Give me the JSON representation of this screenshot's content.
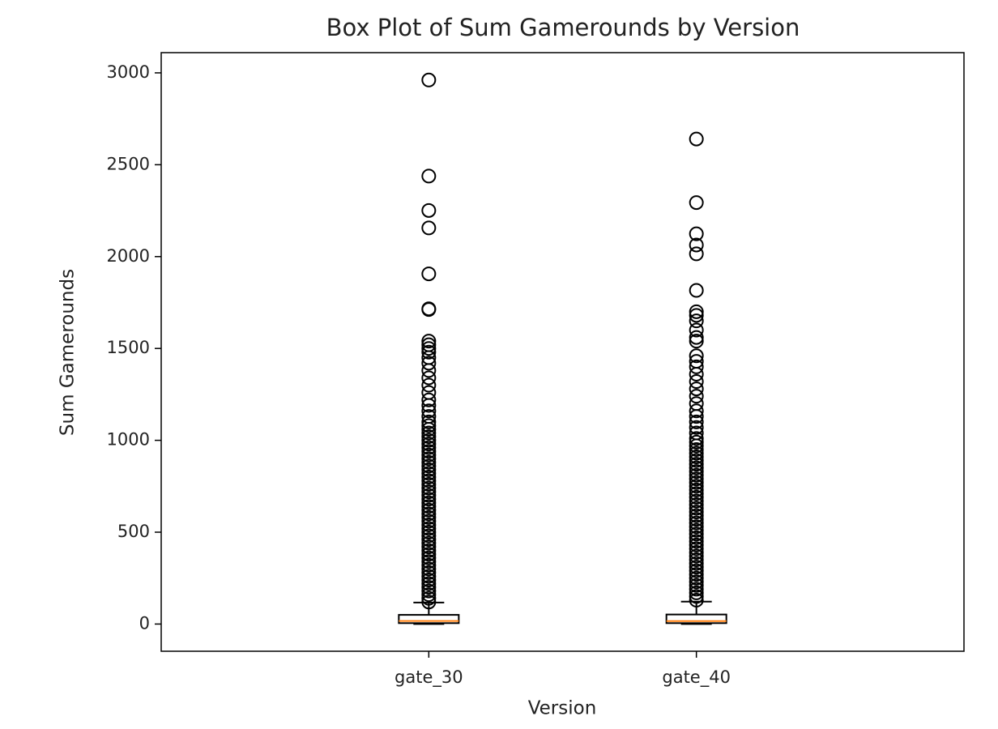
{
  "chart_data": {
    "type": "box",
    "title": "Box Plot of Sum Gamerounds by Version",
    "xlabel": "Version",
    "ylabel": "Sum Gamerounds",
    "categories": [
      "gate_30",
      "gate_40"
    ],
    "ylim": [
      -148,
      3110
    ],
    "yticks": [
      0,
      500,
      1000,
      1500,
      2000,
      2500,
      3000
    ],
    "box_color": "#000000",
    "median_color": "#ff7f0e",
    "boxes": [
      {
        "whislo": 0,
        "q1": 5,
        "med": 17,
        "q3": 50,
        "whishi": 117,
        "fliers": [
          120,
          140,
          160,
          180,
          200,
          220,
          240,
          260,
          280,
          300,
          320,
          340,
          360,
          380,
          400,
          420,
          440,
          460,
          480,
          500,
          520,
          540,
          560,
          580,
          600,
          620,
          640,
          660,
          680,
          700,
          720,
          740,
          760,
          780,
          800,
          820,
          840,
          860,
          880,
          900,
          920,
          940,
          960,
          980,
          1000,
          1020,
          1040,
          1060,
          1080,
          1100,
          1130,
          1160,
          1190,
          1220,
          1260,
          1300,
          1340,
          1380,
          1420,
          1450,
          1480,
          1500,
          1520,
          1540,
          1712,
          1716,
          1906,
          2156,
          2251,
          2438,
          2961
        ]
      },
      {
        "whislo": 0,
        "q1": 5,
        "med": 16,
        "q3": 52,
        "whishi": 122,
        "fliers": [
          130,
          150,
          170,
          190,
          210,
          230,
          250,
          270,
          290,
          310,
          330,
          350,
          370,
          390,
          410,
          430,
          450,
          470,
          490,
          510,
          530,
          550,
          570,
          590,
          610,
          630,
          650,
          670,
          690,
          710,
          730,
          750,
          770,
          790,
          810,
          830,
          850,
          870,
          890,
          910,
          930,
          950,
          970,
          990,
          1010,
          1040,
          1070,
          1100,
          1130,
          1160,
          1200,
          1240,
          1280,
          1320,
          1360,
          1400,
          1430,
          1460,
          1540,
          1560,
          1600,
          1650,
          1680,
          1700,
          1816,
          2015,
          2063,
          2124,
          2294,
          2640
        ]
      }
    ]
  }
}
